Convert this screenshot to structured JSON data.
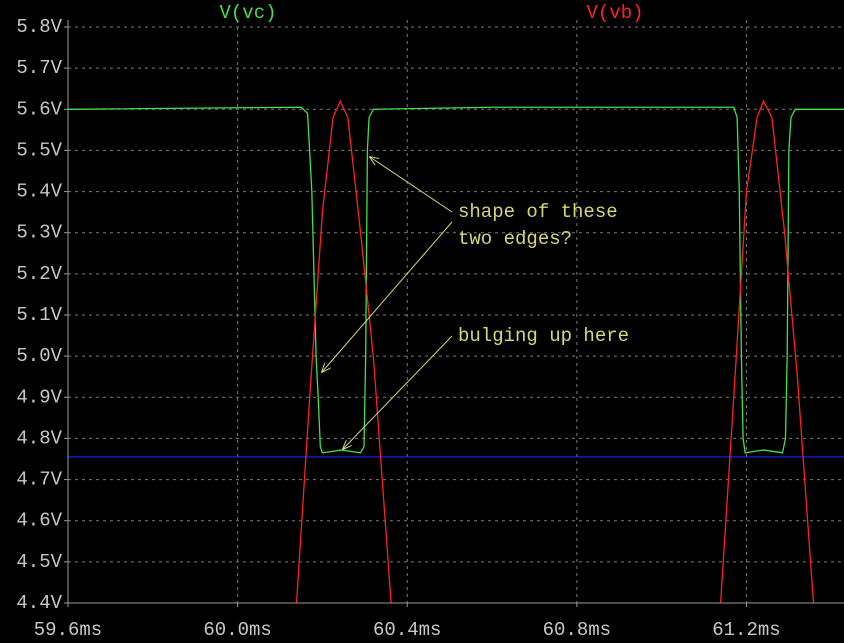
{
  "chart_data": {
    "type": "line",
    "xlim": [
      59.6,
      61.43
    ],
    "ylim": [
      4.4,
      5.8
    ],
    "xticks": [
      {
        "value": 59.6,
        "label": "59.6ms"
      },
      {
        "value": 60.0,
        "label": "60.0ms"
      },
      {
        "value": 60.4,
        "label": "60.4ms"
      },
      {
        "value": 60.8,
        "label": "60.8ms"
      },
      {
        "value": 61.2,
        "label": "61.2ms"
      }
    ],
    "yticks": [
      {
        "value": 4.4,
        "label": "4.4V"
      },
      {
        "value": 4.5,
        "label": "4.5V"
      },
      {
        "value": 4.6,
        "label": "4.6V"
      },
      {
        "value": 4.7,
        "label": "4.7V"
      },
      {
        "value": 4.8,
        "label": "4.8V"
      },
      {
        "value": 4.9,
        "label": "4.9V"
      },
      {
        "value": 5.0,
        "label": "5.0V"
      },
      {
        "value": 5.1,
        "label": "5.1V"
      },
      {
        "value": 5.2,
        "label": "5.2V"
      },
      {
        "value": 5.3,
        "label": "5.3V"
      },
      {
        "value": 5.4,
        "label": "5.4V"
      },
      {
        "value": 5.5,
        "label": "5.5V"
      },
      {
        "value": 5.6,
        "label": "5.6V"
      },
      {
        "value": 5.7,
        "label": "5.7V"
      },
      {
        "value": 5.8,
        "label": "5.8V"
      }
    ],
    "grid": true,
    "series": [
      {
        "name": "V(vc)",
        "color": "#44e044",
        "x": [
          59.6,
          60.15,
          60.165,
          60.175,
          60.185,
          60.19,
          60.195,
          60.2,
          60.22,
          60.245,
          60.27,
          60.29,
          60.298,
          60.302,
          60.306,
          60.31,
          60.32,
          60.6,
          61.17,
          61.178,
          61.183,
          61.188,
          61.192,
          61.197,
          61.24,
          61.285,
          61.292,
          61.296,
          61.3,
          61.305,
          61.315,
          61.43
        ],
        "values": [
          5.6,
          5.605,
          5.59,
          5.4,
          5.0,
          4.9,
          4.78,
          4.765,
          4.768,
          4.772,
          4.768,
          4.765,
          4.78,
          5.0,
          5.5,
          5.58,
          5.6,
          5.605,
          5.605,
          5.58,
          5.4,
          5.0,
          4.8,
          4.765,
          4.772,
          4.765,
          4.8,
          5.0,
          5.5,
          5.58,
          5.6,
          5.6
        ]
      },
      {
        "name": "V(vb)",
        "color": "#ff2020",
        "x": [
          60.139,
          60.17,
          60.2,
          60.225,
          60.242,
          60.26,
          60.29,
          60.32,
          60.362,
          60.8,
          61.139,
          61.17,
          61.2,
          61.225,
          61.24,
          61.26,
          61.29,
          61.32,
          61.358
        ],
        "values": [
          4.4,
          4.9,
          5.35,
          5.58,
          5.62,
          5.58,
          5.3,
          5.0,
          4.4,
          null,
          4.4,
          4.9,
          5.4,
          5.58,
          5.62,
          5.58,
          5.3,
          4.95,
          4.4
        ]
      }
    ],
    "reference_line": {
      "value": 4.755,
      "color": "#2020ff"
    },
    "annotations": [
      {
        "text": [
          "shape of these",
          "two edges?"
        ]
      },
      {
        "text": "bulging up here"
      }
    ]
  }
}
